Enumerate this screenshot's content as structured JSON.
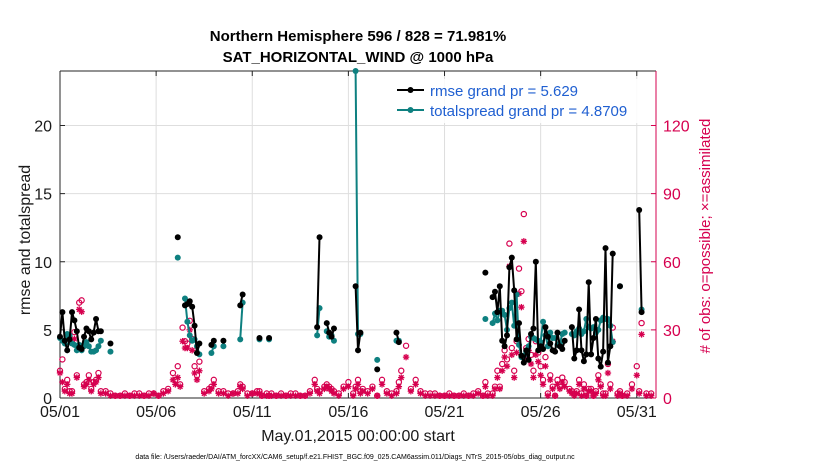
{
  "chart_data": {
    "type": "line",
    "title": "Northern Hemisphere 596 / 828 = 71.981%",
    "subtitle": "SAT_HORIZONTAL_WIND @ 1000 hPa",
    "xlabel": "May.01,2015 00:00:00 start",
    "ylabel": "rmse and totalspread",
    "ylabel_right": "# of obs: o=possible; ×=assimilated",
    "footnote": "data file: /Users/raeder/DAI/ATM_forcXX/CAM6_setup/f.e21.FHIST_BGC.f09_025.CAM6assim.011/Diags_NTrS_2015-05/obs_diag_output.nc",
    "xlim": [
      1,
      32
    ],
    "ylim": [
      0,
      24
    ],
    "ylim_right": [
      0,
      144
    ],
    "x_ticks": [
      1,
      6,
      11,
      16,
      21,
      26,
      31
    ],
    "x_tick_labels": [
      "05/01",
      "05/06",
      "05/11",
      "05/16",
      "05/21",
      "05/26",
      "05/31"
    ],
    "y_ticks": [
      0,
      5,
      10,
      15,
      20
    ],
    "y_ticks_right": [
      0,
      30,
      60,
      90,
      120
    ],
    "grid": true,
    "legend_position": "top-right",
    "colors": {
      "rmse": "#000000",
      "spread": "#0e8080",
      "obs": "#d6004f",
      "legend_text": "#1f5fd1"
    },
    "series": [
      {
        "name": "rmse grand pr = 5.629",
        "color": "#000000",
        "x": [
          1.0,
          1.125,
          1.25,
          1.375,
          1.5,
          1.625,
          1.75,
          1.875,
          2.0,
          2.125,
          2.25,
          2.375,
          2.5,
          2.625,
          2.75,
          2.875,
          3.0,
          3.125,
          null,
          3.625,
          null,
          7.125,
          null,
          7.5,
          7.625,
          7.75,
          7.875,
          8.0,
          8.125,
          8.25,
          null,
          8.875,
          9.0,
          null,
          9.5,
          null,
          10.375,
          10.5,
          null,
          11.375,
          null,
          11.875,
          null,
          14.375,
          14.5,
          null,
          14.875,
          15.0,
          15.125,
          15.25,
          null,
          16.375,
          16.5,
          16.625,
          null,
          17.5,
          null,
          18.5,
          18.625,
          null,
          23.125,
          null,
          23.5,
          23.625,
          23.75,
          23.875,
          24.0,
          24.125,
          24.25,
          24.375,
          24.5,
          24.625,
          24.75,
          24.875,
          25.0,
          25.125,
          25.25,
          25.375,
          25.5,
          25.625,
          25.75,
          25.875,
          26.0,
          26.125,
          26.25,
          26.375,
          26.5,
          26.625,
          26.75,
          26.875,
          27.0,
          27.125,
          27.25,
          null,
          27.625,
          27.75,
          27.875,
          28.0,
          28.125,
          28.25,
          28.375,
          28.5,
          28.625,
          28.75,
          28.875,
          29.0,
          29.125,
          29.25,
          29.375,
          29.5,
          29.625,
          29.75,
          null,
          30.125,
          null,
          31.125,
          31.25
        ],
        "values": [
          4.5,
          6.3,
          4.2,
          3.5,
          4.3,
          6.3,
          5.7,
          4.9,
          3.7,
          3.6,
          4.5,
          5.1,
          4.9,
          4.3,
          4.8,
          5.8,
          4.9,
          4.9,
          null,
          4.0,
          null,
          11.8,
          null,
          6.8,
          6.9,
          7.1,
          6.7,
          5.3,
          3.3,
          4.0,
          null,
          3.9,
          4.2,
          null,
          4.2,
          null,
          6.8,
          7.6,
          null,
          4.4,
          null,
          4.4,
          null,
          5.2,
          11.8,
          null,
          5.5,
          4.8,
          4.5,
          5.1,
          null,
          8.2,
          3.5,
          4.8,
          null,
          2.1,
          null,
          4.8,
          4.1,
          null,
          9.2,
          null,
          7.4,
          7.8,
          6.3,
          8.2,
          4.2,
          3.8,
          4.6,
          9.6,
          10.3,
          7.9,
          4.3,
          5.5,
          3.1,
          2.6,
          3.5,
          2.8,
          4.7,
          5.1,
          10.0,
          3.5,
          3.8,
          3.6,
          5.2,
          4.5,
          4.0,
          3.5,
          3.4,
          4.8,
          3.8,
          3.6,
          4.2,
          null,
          5.2,
          2.9,
          3.5,
          6.5,
          3.5,
          2.7,
          3.2,
          8.5,
          3.2,
          4.4,
          5.8,
          2.9,
          2.3,
          3.4,
          11.0,
          2.6,
          3.8,
          10.6,
          null,
          8.2,
          null,
          13.8,
          6.3
        ]
      },
      {
        "name": "totalspread grand pr = 4.8709",
        "color": "#0e8080",
        "x": [
          1.0,
          1.125,
          1.25,
          1.375,
          1.5,
          1.625,
          1.75,
          1.875,
          2.0,
          2.125,
          2.25,
          2.375,
          2.5,
          2.625,
          2.75,
          2.875,
          3.0,
          3.125,
          null,
          3.625,
          null,
          7.125,
          null,
          7.5,
          7.625,
          7.75,
          7.875,
          8.0,
          8.125,
          8.25,
          null,
          8.875,
          9.0,
          null,
          9.5,
          null,
          10.375,
          10.5,
          null,
          11.375,
          null,
          11.875,
          null,
          14.375,
          14.5,
          null,
          14.875,
          15.0,
          15.125,
          15.25,
          null,
          16.375,
          16.5,
          16.625,
          null,
          17.5,
          null,
          18.5,
          18.625,
          null,
          23.125,
          null,
          23.5,
          23.625,
          23.75,
          23.875,
          24.0,
          24.125,
          24.25,
          24.375,
          24.5,
          24.625,
          24.75,
          24.875,
          25.0,
          25.125,
          25.25,
          25.375,
          25.5,
          25.625,
          25.75,
          25.875,
          26.0,
          26.125,
          26.25,
          26.375,
          26.5,
          26.625,
          26.75,
          26.875,
          27.0,
          27.125,
          27.25,
          null,
          27.625,
          27.75,
          27.875,
          28.0,
          28.125,
          28.25,
          28.375,
          28.5,
          28.625,
          28.75,
          28.875,
          29.0,
          29.125,
          29.25,
          29.375,
          29.5,
          29.625,
          29.75,
          null,
          30.125,
          null,
          31.125,
          31.25
        ],
        "values": [
          4.4,
          4.2,
          4.0,
          4.7,
          4.6,
          4.0,
          3.9,
          3.5,
          3.9,
          3.5,
          3.8,
          4.1,
          3.8,
          3.4,
          3.4,
          3.5,
          3.8,
          4.2,
          null,
          3.4,
          null,
          10.3,
          null,
          7.3,
          5.6,
          4.6,
          4.2,
          4.3,
          3.8,
          3.2,
          null,
          3.3,
          3.8,
          null,
          3.8,
          null,
          4.3,
          7.0,
          null,
          4.3,
          null,
          4.3,
          null,
          4.6,
          6.6,
          null,
          4.9,
          4.5,
          4.6,
          4.2,
          null,
          24.0,
          4.7,
          4.7,
          null,
          2.8,
          null,
          4.2,
          4.2,
          null,
          5.8,
          null,
          5.5,
          6.2,
          5.7,
          6.4,
          6.4,
          6.1,
          5.0,
          6.6,
          7.0,
          5.3,
          7.6,
          3.9,
          3.0,
          3.1,
          3.4,
          3.8,
          4.5,
          4.4,
          4.3,
          4.2,
          4.1,
          5.6,
          4.6,
          3.8,
          4.8,
          4.4,
          4.4,
          3.9,
          4.0,
          4.7,
          4.8,
          null,
          4.7,
          4.6,
          4.9,
          5.1,
          4.7,
          4.9,
          5.8,
          5.2,
          5.1,
          5.2,
          4.8,
          5.0,
          5.7,
          5.9,
          5.8,
          5.8,
          5.3,
          4.1,
          null,
          8.2,
          null,
          null,
          6.5
        ]
      },
      {
        "name": "# of obs possible",
        "axis": "right",
        "marker": "o",
        "color": "#d6004f",
        "x": [
          1.0,
          1.125,
          1.25,
          1.375,
          1.5,
          1.625,
          1.75,
          1.875,
          2.0,
          2.125,
          2.25,
          2.375,
          2.5,
          2.625,
          2.75,
          2.875,
          3.0,
          3.125,
          3.375,
          3.625,
          3.875,
          4.125,
          4.375,
          4.625,
          4.875,
          5.125,
          5.375,
          5.625,
          5.875,
          6.125,
          6.375,
          6.625,
          6.875,
          7.0,
          7.125,
          7.25,
          7.375,
          7.5,
          7.625,
          7.75,
          7.875,
          8.0,
          8.125,
          8.25,
          8.5,
          8.75,
          8.875,
          9.0,
          9.25,
          9.5,
          9.75,
          10.0,
          10.25,
          10.375,
          10.5,
          10.75,
          11.0,
          11.25,
          11.375,
          11.5,
          11.75,
          11.875,
          12.0,
          12.25,
          12.5,
          12.75,
          13.0,
          13.25,
          13.5,
          13.75,
          14.0,
          14.25,
          14.375,
          14.5,
          14.75,
          14.875,
          15.0,
          15.125,
          15.25,
          15.5,
          15.75,
          16.0,
          16.25,
          16.375,
          16.5,
          16.625,
          16.75,
          17.0,
          17.25,
          17.5,
          17.75,
          18.0,
          18.25,
          18.5,
          18.625,
          18.75,
          19.0,
          19.25,
          19.5,
          19.75,
          20.0,
          20.25,
          20.5,
          20.75,
          21.0,
          21.25,
          21.5,
          21.75,
          22.0,
          22.25,
          22.5,
          22.75,
          23.0,
          23.125,
          23.25,
          23.5,
          23.625,
          23.75,
          23.875,
          24.0,
          24.125,
          24.25,
          24.375,
          24.5,
          24.625,
          24.75,
          24.875,
          25.0,
          25.125,
          25.25,
          25.375,
          25.5,
          25.625,
          25.75,
          25.875,
          26.0,
          26.125,
          26.25,
          26.375,
          26.5,
          26.625,
          26.75,
          26.875,
          27.0,
          27.125,
          27.25,
          27.5,
          27.625,
          27.75,
          27.875,
          28.0,
          28.125,
          28.25,
          28.375,
          28.5,
          28.625,
          28.75,
          28.875,
          29.0,
          29.125,
          29.25,
          29.375,
          29.5,
          29.625,
          29.75,
          30.0,
          30.125,
          30.25,
          30.5,
          30.75,
          31.0,
          31.125,
          31.25,
          31.5,
          31.75
        ],
        "values": [
          12,
          17,
          4,
          8,
          3,
          3,
          29,
          10,
          42,
          43,
          6,
          7,
          10,
          4,
          7,
          8,
          11,
          3,
          3,
          2,
          1,
          1,
          2,
          1,
          2,
          2,
          1,
          2,
          2,
          1,
          3,
          4,
          11,
          8,
          14,
          6,
          31,
          25,
          24,
          34,
          26,
          14,
          10,
          16,
          3,
          4,
          5,
          8,
          3,
          3,
          2,
          2,
          3,
          6,
          5,
          2,
          2,
          3,
          3,
          1,
          2,
          1,
          2,
          1,
          2,
          1,
          2,
          2,
          1,
          1,
          3,
          8,
          4,
          3,
          5,
          6,
          5,
          4,
          3,
          2,
          5,
          7,
          2,
          5,
          8,
          3,
          4,
          3,
          5,
          1,
          8,
          3,
          2,
          3,
          7,
          12,
          23,
          4,
          8,
          3,
          2,
          2,
          2,
          1,
          1,
          2,
          1,
          1,
          2,
          1,
          2,
          3,
          1,
          7,
          2,
          2,
          5,
          12,
          5,
          15,
          21,
          17,
          68,
          22,
          12,
          25,
          57,
          47,
          81,
          22,
          26,
          19,
          12,
          25,
          20,
          14,
          8,
          18,
          2,
          10,
          5,
          1,
          8,
          5,
          9,
          7,
          4,
          3,
          2,
          3,
          8,
          2,
          6,
          1,
          4,
          4,
          1,
          3,
          10,
          6,
          2,
          2,
          15,
          6,
          31,
          2,
          3,
          1,
          2,
          6,
          14,
          3,
          33,
          2,
          2
        ]
      },
      {
        "name": "# of obs assimilated",
        "axis": "right",
        "marker": "*",
        "color": "#d6004f",
        "x": [
          1.0,
          1.125,
          1.25,
          1.375,
          1.5,
          1.625,
          1.75,
          1.875,
          2.0,
          2.125,
          2.25,
          2.375,
          2.5,
          2.625,
          2.75,
          2.875,
          3.0,
          3.125,
          3.375,
          3.625,
          3.875,
          4.125,
          4.375,
          4.625,
          4.875,
          5.125,
          5.375,
          5.625,
          5.875,
          6.125,
          6.375,
          6.625,
          6.875,
          7.0,
          7.125,
          7.25,
          7.375,
          7.5,
          7.625,
          7.75,
          7.875,
          8.0,
          8.125,
          8.25,
          8.5,
          8.75,
          8.875,
          9.0,
          9.25,
          9.5,
          9.75,
          10.0,
          10.25,
          10.375,
          10.5,
          10.75,
          11.0,
          11.25,
          11.375,
          11.5,
          11.75,
          11.875,
          12.0,
          12.25,
          12.5,
          12.75,
          13.0,
          13.25,
          13.5,
          13.75,
          14.0,
          14.25,
          14.375,
          14.5,
          14.75,
          14.875,
          15.0,
          15.125,
          15.25,
          15.5,
          15.75,
          16.0,
          16.25,
          16.375,
          16.5,
          16.625,
          16.75,
          17.0,
          17.25,
          17.5,
          17.75,
          18.0,
          18.25,
          18.5,
          18.625,
          18.75,
          19.0,
          19.25,
          19.5,
          19.75,
          20.0,
          20.25,
          20.5,
          20.75,
          21.0,
          21.25,
          21.5,
          21.75,
          22.0,
          22.25,
          22.5,
          22.75,
          23.0,
          23.125,
          23.25,
          23.5,
          23.625,
          23.75,
          23.875,
          24.0,
          24.125,
          24.25,
          24.375,
          24.5,
          24.625,
          24.75,
          24.875,
          25.0,
          25.125,
          25.25,
          25.375,
          25.5,
          25.625,
          25.75,
          25.875,
          26.0,
          26.125,
          26.25,
          26.375,
          26.5,
          26.625,
          26.75,
          26.875,
          27.0,
          27.125,
          27.25,
          27.5,
          27.625,
          27.75,
          27.875,
          28.0,
          28.125,
          28.25,
          28.375,
          28.5,
          28.625,
          28.75,
          28.875,
          29.0,
          29.125,
          29.25,
          29.375,
          29.5,
          29.625,
          29.75,
          30.0,
          30.125,
          30.25,
          30.5,
          30.75,
          31.0,
          31.125,
          31.25,
          31.5,
          31.75
        ],
        "values": [
          11,
          7,
          3,
          6,
          2,
          2,
          26,
          9,
          39,
          38,
          5,
          6,
          8,
          3,
          6,
          7,
          9,
          2,
          2,
          1,
          1,
          1,
          1,
          1,
          1,
          1,
          1,
          1,
          2,
          1,
          2,
          3,
          8,
          6,
          9,
          5,
          25,
          22,
          22,
          30,
          21,
          11,
          8,
          12,
          2,
          3,
          4,
          6,
          2,
          2,
          1,
          2,
          2,
          5,
          4,
          1,
          2,
          2,
          2,
          1,
          1,
          1,
          1,
          1,
          1,
          1,
          1,
          1,
          1,
          1,
          2,
          6,
          3,
          2,
          4,
          5,
          4,
          3,
          2,
          1,
          4,
          5,
          1,
          4,
          6,
          2,
          3,
          2,
          4,
          1,
          6,
          2,
          1,
          2,
          5,
          9,
          18,
          3,
          6,
          2,
          1,
          1,
          1,
          1,
          1,
          1,
          1,
          1,
          1,
          1,
          1,
          2,
          1,
          5,
          1,
          1,
          4,
          9,
          4,
          12,
          18,
          14,
          58,
          19,
          9,
          20,
          46,
          40,
          69,
          18,
          21,
          15,
          9,
          19,
          16,
          10,
          6,
          14,
          1,
          8,
          4,
          1,
          6,
          4,
          7,
          5,
          3,
          2,
          1,
          2,
          6,
          1,
          4,
          1,
          3,
          3,
          1,
          2,
          8,
          5,
          1,
          1,
          11,
          4,
          25,
          1,
          2,
          1,
          1,
          4,
          10,
          2,
          28,
          1,
          1
        ]
      }
    ]
  }
}
